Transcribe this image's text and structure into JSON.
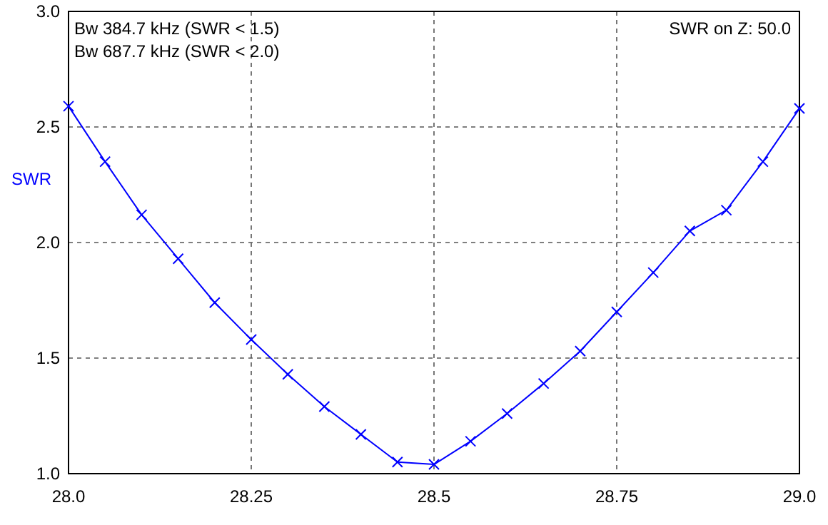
{
  "chart_data": {
    "type": "line",
    "ylabel": "SWR",
    "annotations": [
      "Bw 384.7 kHz (SWR < 1.5)",
      "Bw 687.7 kHz (SWR < 2.0)",
      "SWR on Z: 50.0"
    ],
    "x": [
      28.0,
      28.05,
      28.1,
      28.15,
      28.2,
      28.25,
      28.3,
      28.35,
      28.4,
      28.45,
      28.5,
      28.55,
      28.6,
      28.65,
      28.7,
      28.75,
      28.8,
      28.85,
      28.9,
      28.95,
      29.0
    ],
    "series": [
      {
        "color": "#0000ff",
        "values": [
          2.59,
          2.35,
          2.12,
          1.93,
          1.74,
          1.58,
          1.43,
          1.29,
          1.17,
          1.05,
          1.04,
          1.14,
          1.26,
          1.39,
          1.53,
          1.7,
          1.87,
          2.05,
          2.14,
          2.35,
          2.58
        ]
      }
    ],
    "xlim": [
      28.0,
      29.0
    ],
    "xticks": [
      {
        "value": 28.0,
        "label": "28.0"
      },
      28.25,
      28.5,
      28.75,
      {
        "value": 29.0,
        "label": "29.0"
      }
    ],
    "ylim": [
      1.0,
      3.0
    ],
    "yticks": [
      {
        "value": 1.0,
        "label": "1.0"
      },
      1.5,
      {
        "value": 2.0,
        "label": "2.0"
      },
      2.5,
      {
        "value": 3.0,
        "label": "3.0"
      }
    ],
    "grid": true,
    "marker": "cross",
    "line_style": "solid"
  }
}
